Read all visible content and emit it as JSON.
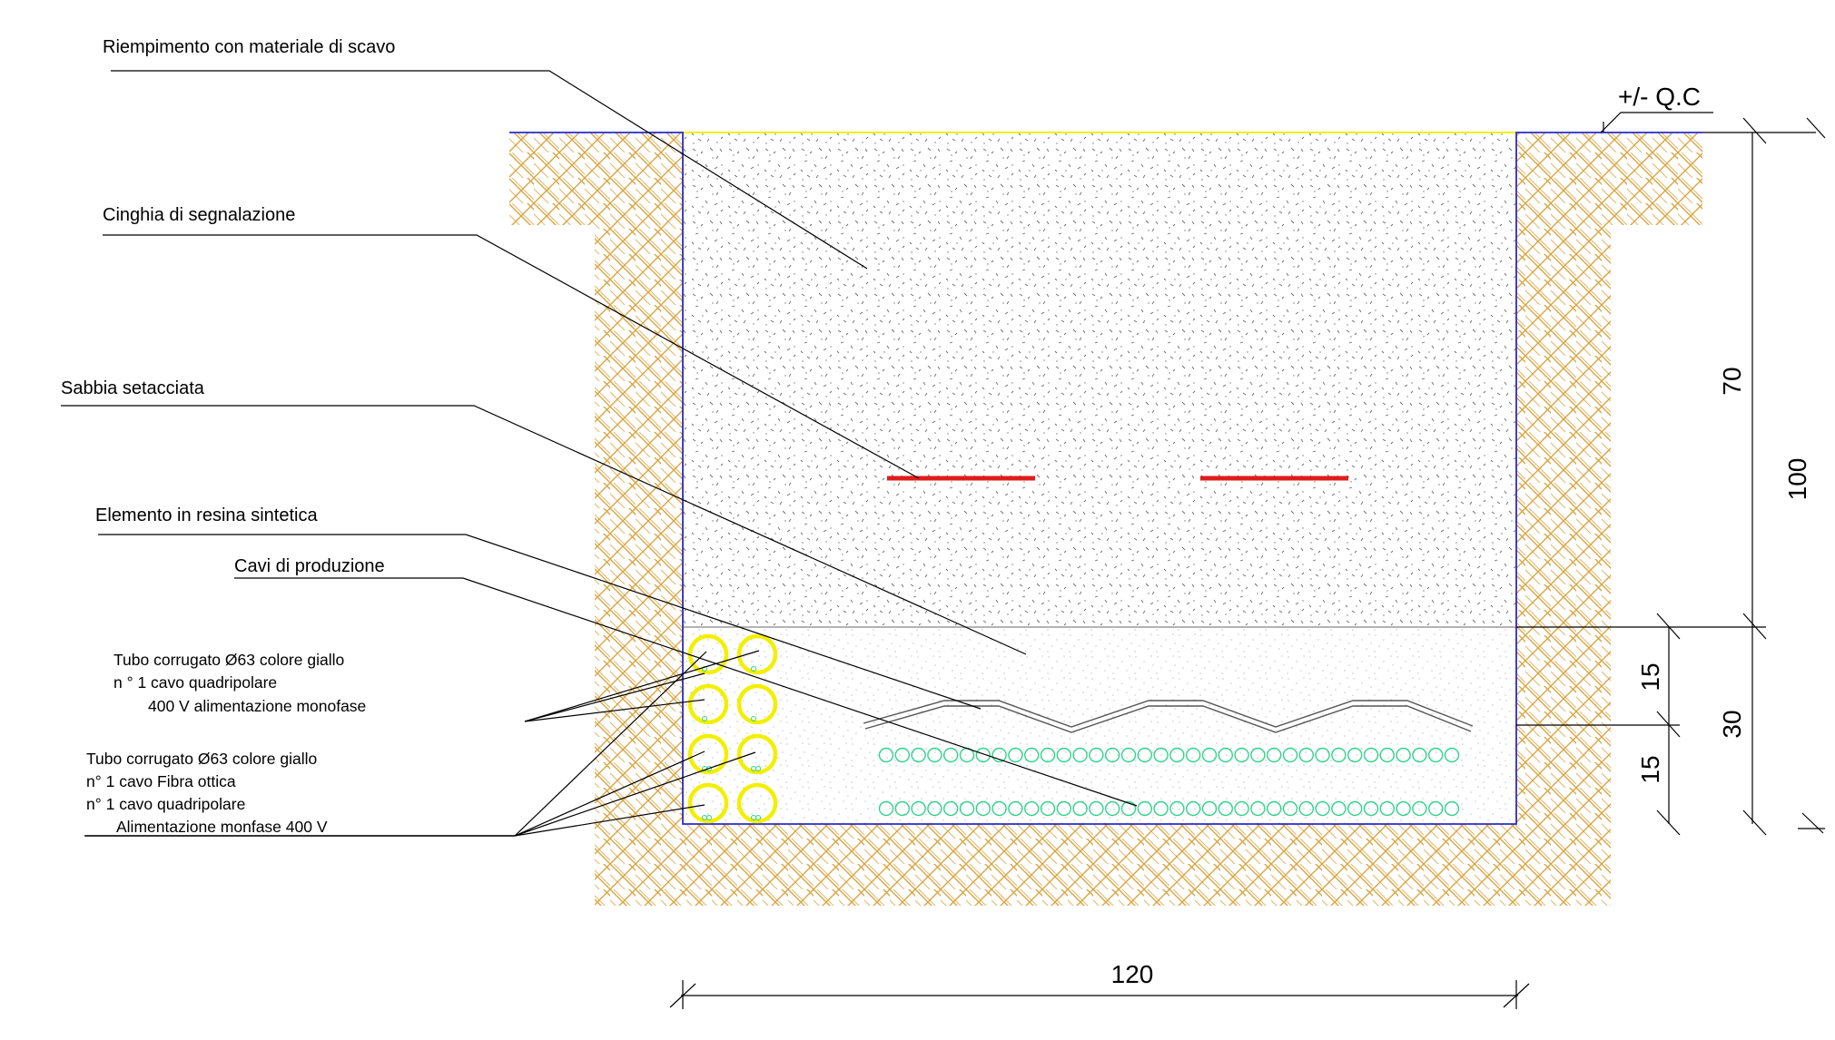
{
  "labels": {
    "backfill": "Riempimento con materiale di scavo",
    "warning_tape": "Cinghia di segnalazione",
    "sieved_sand": "Sabbia setacciata",
    "resin_element": "Elemento in resina sintetica",
    "production_cables": "Cavi di produzione"
  },
  "conduit_notes": {
    "group1": [
      "Tubo corrugato Ø63 colore giallo",
      "n ° 1 cavo quadripolare",
      "400 V alimentazione monofase"
    ],
    "group2": [
      "Tubo corrugato Ø63 colore giallo",
      "n° 1 cavo Fibra ottica",
      "n° 1 cavo quadripolare",
      "Alimentazione monfase 400 V"
    ]
  },
  "level_label": "+/- Q.C",
  "dimensions": {
    "backfill_depth": "70",
    "total_depth": "100",
    "sand_upper": "15",
    "sand_lower": "15",
    "sand_total": "30",
    "trench_width": "120"
  },
  "colors": {
    "trench_outline": "#2a2ad0",
    "soil_hatch": "#d9a441",
    "warning_tape": "#e01b1b",
    "conduit": "#f2ef00",
    "cable": "#2fd38a",
    "ground_line": "#f2ef00"
  },
  "icons": {
    "soil": "diagonal-hatch-pattern",
    "backfill": "speckle-pattern",
    "conduit": "circle",
    "cable": "circle"
  }
}
